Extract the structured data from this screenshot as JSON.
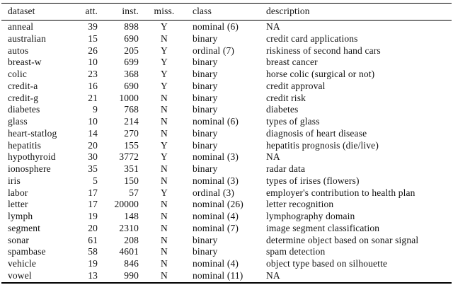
{
  "table": {
    "columns": [
      {
        "key": "dataset",
        "label": "dataset",
        "align": "left"
      },
      {
        "key": "att",
        "label": "att.",
        "align": "right"
      },
      {
        "key": "inst",
        "label": "inst.",
        "align": "right"
      },
      {
        "key": "miss",
        "label": "miss.",
        "align": "center"
      },
      {
        "key": "class",
        "label": "class",
        "align": "left"
      },
      {
        "key": "description",
        "label": "description",
        "align": "left"
      }
    ],
    "rows": [
      [
        "anneal",
        "39",
        "898",
        "Y",
        "nominal (6)",
        "NA"
      ],
      [
        "australian",
        "15",
        "690",
        "N",
        "binary",
        "credit card applications"
      ],
      [
        "autos",
        "26",
        "205",
        "Y",
        "ordinal (7)",
        "riskiness of second hand cars"
      ],
      [
        "breast-w",
        "10",
        "699",
        "Y",
        "binary",
        "breast cancer"
      ],
      [
        "colic",
        "23",
        "368",
        "Y",
        "binary",
        "horse colic (surgical or not)"
      ],
      [
        "credit-a",
        "16",
        "690",
        "Y",
        "binary",
        "credit approval"
      ],
      [
        "credit-g",
        "21",
        "1000",
        "N",
        "binary",
        "credit risk"
      ],
      [
        "diabetes",
        "9",
        "768",
        "N",
        "binary",
        "diabetes"
      ],
      [
        "glass",
        "10",
        "214",
        "N",
        "nominal (6)",
        "types of glass"
      ],
      [
        "heart-statlog",
        "14",
        "270",
        "N",
        "binary",
        "diagnosis of heart disease"
      ],
      [
        "hepatitis",
        "20",
        "155",
        "Y",
        "binary",
        "hepatitis prognosis (die/live)"
      ],
      [
        "hypothyroid",
        "30",
        "3772",
        "Y",
        "nominal (3)",
        "NA"
      ],
      [
        "ionosphere",
        "35",
        "351",
        "N",
        "binary",
        "radar data"
      ],
      [
        "iris",
        "5",
        "150",
        "N",
        "nominal (3)",
        "types of irises (flowers)"
      ],
      [
        "labor",
        "17",
        "57",
        "Y",
        "ordinal (3)",
        "employer's contribution to health plan"
      ],
      [
        "letter",
        "17",
        "20000",
        "N",
        "nominal (26)",
        "letter recognition"
      ],
      [
        "lymph",
        "19",
        "148",
        "N",
        "nominal (4)",
        "lymphography domain"
      ],
      [
        "segment",
        "20",
        "2310",
        "N",
        "nominal (7)",
        "image segment classification"
      ],
      [
        "sonar",
        "61",
        "208",
        "N",
        "binary",
        "determine object based on sonar signal"
      ],
      [
        "spambase",
        "58",
        "4601",
        "N",
        "binary",
        "spam detection"
      ],
      [
        "vehicle",
        "19",
        "846",
        "N",
        "nominal (4)",
        "object type based on silhouette"
      ],
      [
        "vowel",
        "13",
        "990",
        "N",
        "nominal (11)",
        "NA"
      ]
    ]
  }
}
